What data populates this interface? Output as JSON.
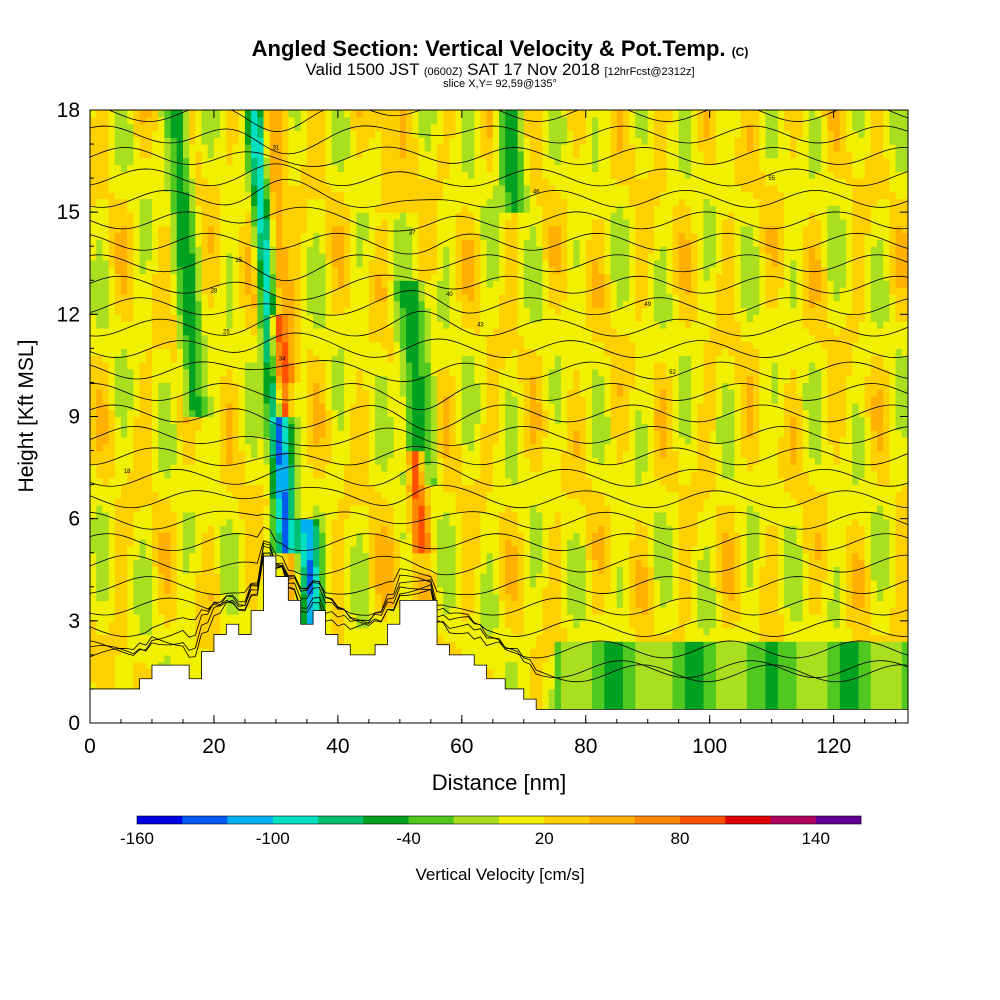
{
  "header": {
    "title_main": "Angled Section: Vertical Velocity & Pot.Temp.",
    "title_tag": "(C)",
    "valid_prefix": "Valid 1500 JST",
    "valid_utc": "(0600Z)",
    "valid_date": "SAT 17 Nov 2018",
    "valid_fcst": "[12hrFcst@2312z]",
    "slice": "slice X,Y= 92,59@135°"
  },
  "chart_data": {
    "type": "heatmap",
    "xlabel": "Distance [nm]",
    "ylabel": "Height [Kft MSL]",
    "xlim": [
      0,
      132
    ],
    "ylim": [
      0,
      18
    ],
    "x_ticks": [
      0,
      20,
      40,
      60,
      80,
      100,
      120
    ],
    "y_ticks": [
      0,
      3,
      6,
      9,
      12,
      15,
      18
    ],
    "colorbar": {
      "label": "Vertical Velocity [cm/s]",
      "min": -160,
      "max": 160,
      "tick_labels": [
        "-160",
        "-100",
        "-40",
        "20",
        "80",
        "140"
      ],
      "tick_values": [
        -160,
        -100,
        -40,
        20,
        80,
        140
      ],
      "colors": [
        "#0000e6",
        "#005cf0",
        "#00b0f0",
        "#00e0c0",
        "#00c070",
        "#00a020",
        "#50c820",
        "#a8e020",
        "#f0f000",
        "#ffd000",
        "#ffb000",
        "#ff8800",
        "#ff5000",
        "#e00000",
        "#b00060",
        "#600090"
      ]
    },
    "terrain_kft": [
      [
        0,
        1.0
      ],
      [
        6,
        1.0
      ],
      [
        8,
        1.3
      ],
      [
        10,
        1.7
      ],
      [
        14,
        1.7
      ],
      [
        16,
        1.3
      ],
      [
        18,
        2.1
      ],
      [
        20,
        2.6
      ],
      [
        22,
        2.9
      ],
      [
        24,
        2.6
      ],
      [
        26,
        3.3
      ],
      [
        28,
        4.9
      ],
      [
        30,
        4.3
      ],
      [
        32,
        3.6
      ],
      [
        34,
        2.9
      ],
      [
        36,
        3.3
      ],
      [
        38,
        2.6
      ],
      [
        40,
        2.3
      ],
      [
        42,
        2.0
      ],
      [
        46,
        2.3
      ],
      [
        48,
        2.9
      ],
      [
        50,
        3.6
      ],
      [
        53,
        3.6
      ],
      [
        56,
        2.3
      ],
      [
        58,
        2.0
      ],
      [
        60,
        2.0
      ],
      [
        62,
        1.7
      ],
      [
        64,
        1.3
      ],
      [
        67,
        1.0
      ],
      [
        70,
        0.7
      ],
      [
        72,
        0.4
      ],
      [
        132,
        0.4
      ]
    ],
    "velocity_features": [
      {
        "x": [
          28,
          31
        ],
        "z": [
          5,
          18
        ],
        "w": -140
      },
      {
        "x": [
          34,
          37
        ],
        "z": [
          2.5,
          6
        ],
        "w": -130
      },
      {
        "x": [
          14,
          17
        ],
        "z": [
          9,
          18
        ],
        "w": -60
      },
      {
        "x": [
          50,
          55
        ],
        "z": [
          7,
          13
        ],
        "w": -60
      },
      {
        "x": [
          66,
          70
        ],
        "z": [
          15,
          18
        ],
        "w": -60
      },
      {
        "x": [
          52,
          54
        ],
        "z": [
          5,
          8
        ],
        "w": 100
      },
      {
        "x": [
          29,
          32
        ],
        "z": [
          10,
          18
        ],
        "w": 60
      },
      {
        "x": [
          30,
          32
        ],
        "z": [
          9,
          12
        ],
        "w": 90
      },
      {
        "x": [
          46,
          50
        ],
        "z": [
          3.5,
          5.5
        ],
        "w": 50
      },
      {
        "x": [
          46,
          52
        ],
        "z": [
          15,
          18
        ],
        "w": 40
      }
    ],
    "isentropes": {
      "count": 28,
      "labels": [
        "18",
        "15",
        "25",
        "28",
        "31",
        "34",
        "37",
        "40",
        "43",
        "46",
        "49",
        "52",
        "55"
      ]
    }
  }
}
